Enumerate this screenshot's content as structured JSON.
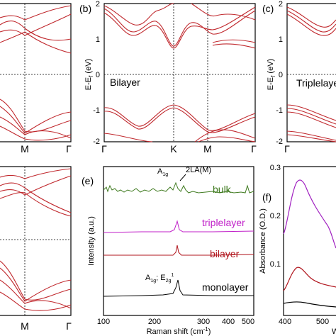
{
  "panels": [
    {
      "label": null,
      "x_tick_labels": [
        "M",
        "Γ"
      ]
    },
    {
      "label": "(b)",
      "text": "Bilayer",
      "y_axis_label": {
        "main": "E-E",
        "sub": "f",
        "unit": " (eV)"
      },
      "y_tick_labels": [
        "2",
        "1",
        "0",
        "-1",
        "-2"
      ],
      "x_tick_labels": [
        "Γ",
        "K",
        "M",
        "Γ"
      ]
    },
    {
      "label": "(c)",
      "text": "Triplelayer",
      "y_axis_label": {
        "main": "E-E",
        "sub": "f",
        "unit": " (eV)"
      },
      "y_tick_labels": [
        "2",
        "1",
        "0",
        "-1",
        "-2"
      ],
      "x_tick_labels": [
        "Γ"
      ]
    },
    {
      "label": null,
      "x_tick_labels": [
        "M",
        "Γ"
      ]
    },
    {
      "label": "(e)",
      "y_axis_label": "Intensity (a.u.)",
      "x_axis_label": {
        "main": "Raman shift (cm",
        "sup": "-1",
        "end": ")"
      },
      "x_tick_labels": [
        "100",
        "200",
        "300",
        "400",
        "500"
      ],
      "trace_labels": [
        "bulk",
        "triplelayer",
        "bilayer",
        "monolayer"
      ],
      "annotations": [
        {
          "main": "A",
          "sub": "1g"
        },
        {
          "text": "2LA(M)"
        },
        {
          "a": "A",
          "asub": "1g",
          "sep": "; E",
          "esub": "2g",
          "esup": "1"
        }
      ]
    },
    {
      "label": "(f)",
      "y_axis_label": "Absorbance (O.D.)",
      "y_tick_labels": [
        "0.3",
        "0.2",
        "0.1"
      ],
      "x_tick_labels": [
        "400",
        "500"
      ],
      "x_axis_label": "W"
    }
  ]
}
